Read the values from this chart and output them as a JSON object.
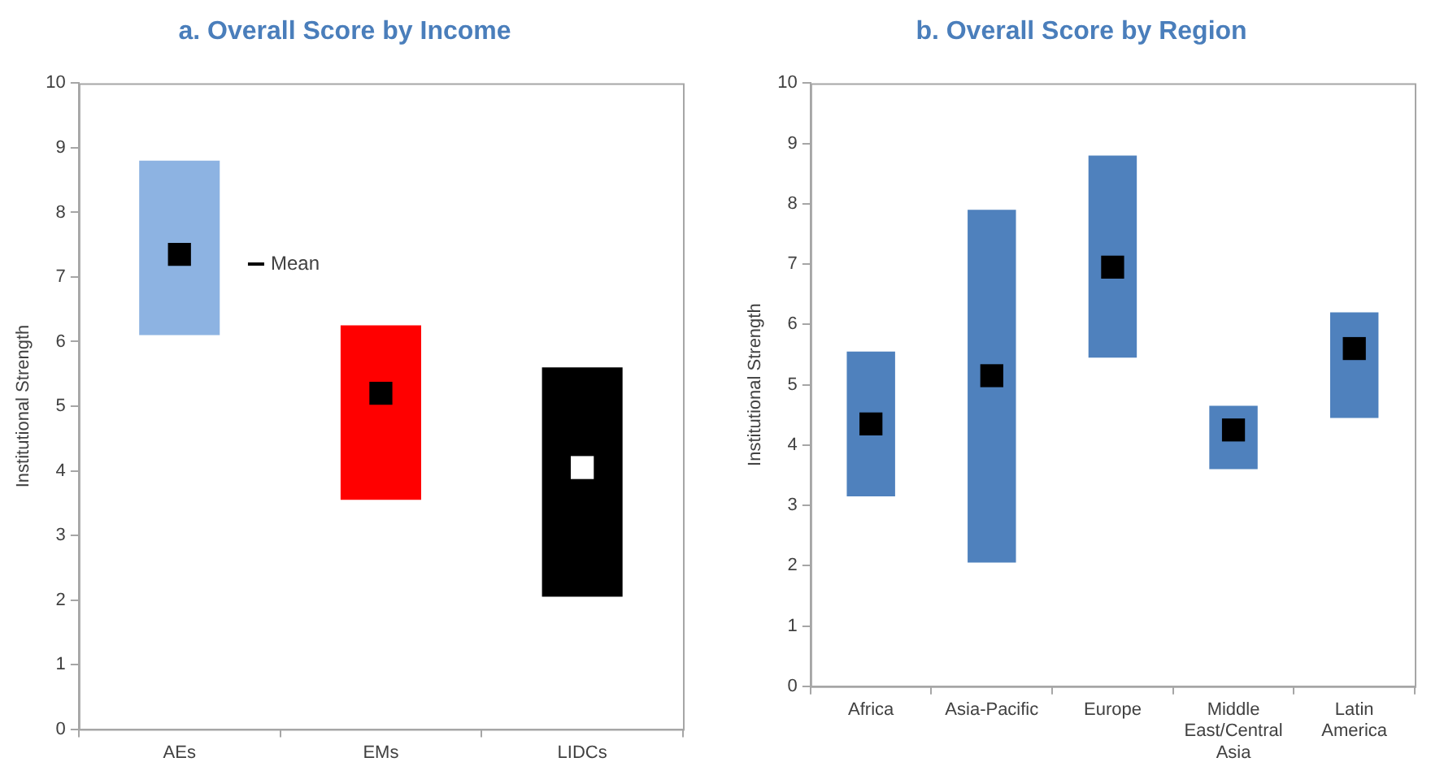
{
  "chart_data": [
    {
      "type": "bar",
      "title": "a. Overall Score by Income",
      "ylabel": "Institutional Strength",
      "categories": [
        "AEs",
        "EMs",
        "LIDCs"
      ],
      "ylim": [
        0,
        10
      ],
      "yticks": [
        0,
        1,
        2,
        3,
        4,
        5,
        6,
        7,
        8,
        9,
        10
      ],
      "legend": "top left",
      "series": [
        {
          "colors": [
            "#8db3e2",
            "#ff0000",
            "#000000"
          ],
          "base": [
            6.1,
            3.55,
            2.05
          ],
          "values": [
            2.7,
            2.7,
            3.55
          ]
        },
        {
          "type": "scatter",
          "name": "Mean",
          "x": [
            "AEs",
            "EMs",
            "LIDCs"
          ],
          "colors": [
            "#000000",
            "#000000",
            "#ffffff"
          ],
          "values": [
            7.35,
            5.2,
            4.05
          ]
        }
      ]
    },
    {
      "type": "bar",
      "title": "b. Overall Score by Region",
      "ylabel": "Institutional Strength",
      "categories": [
        "Africa",
        "Asia-Pacific",
        "Europe",
        "Middle East/Central Asia",
        "Latin America"
      ],
      "ylim": [
        0,
        10
      ],
      "yticks": [
        0,
        1,
        2,
        3,
        4,
        5,
        6,
        7,
        8,
        9,
        10
      ],
      "series": [
        {
          "color": "#4f81bd",
          "base": [
            3.15,
            2.05,
            5.45,
            3.6,
            4.45
          ],
          "values": [
            2.4,
            5.85,
            3.35,
            1.05,
            1.75
          ]
        },
        {
          "type": "scatter",
          "color": "#000000",
          "x": [
            "Africa",
            "Asia-Pacific",
            "Europe",
            "Middle East/Central Asia",
            "Latin America"
          ],
          "values": [
            4.35,
            5.15,
            6.95,
            4.25,
            5.6
          ]
        }
      ]
    }
  ]
}
